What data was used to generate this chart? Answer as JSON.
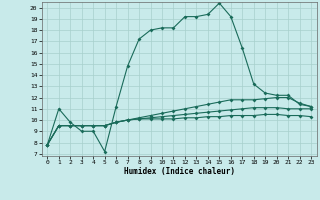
{
  "xlabel": "Humidex (Indice chaleur)",
  "bg_color": "#c8eaea",
  "grid_color": "#a8d0cc",
  "line_color": "#1a6b5a",
  "xlim": [
    -0.5,
    23.5
  ],
  "ylim": [
    6.8,
    20.5
  ],
  "xticks": [
    0,
    1,
    2,
    3,
    4,
    5,
    6,
    7,
    8,
    9,
    10,
    11,
    12,
    13,
    14,
    15,
    16,
    17,
    18,
    19,
    20,
    21,
    22,
    23
  ],
  "yticks": [
    7,
    8,
    9,
    10,
    11,
    12,
    13,
    14,
    15,
    16,
    17,
    18,
    19,
    20
  ],
  "series1_x": [
    0,
    1,
    2,
    3,
    4,
    5,
    6,
    7,
    8,
    9,
    10,
    11,
    12,
    13,
    14,
    15,
    16,
    17,
    18,
    19,
    20,
    21,
    22,
    23
  ],
  "series1_y": [
    7.8,
    11.0,
    9.8,
    9.0,
    9.0,
    7.2,
    11.2,
    14.8,
    17.2,
    18.0,
    18.2,
    18.2,
    19.2,
    19.2,
    19.4,
    20.4,
    19.2,
    16.4,
    13.2,
    12.4,
    12.2,
    12.2,
    11.4,
    11.2
  ],
  "series2_x": [
    0,
    1,
    2,
    3,
    4,
    5,
    6,
    7,
    8,
    9,
    10,
    11,
    12,
    13,
    14,
    15,
    16,
    17,
    18,
    19,
    20,
    21,
    22,
    23
  ],
  "series2_y": [
    7.8,
    9.5,
    9.5,
    9.5,
    9.5,
    9.5,
    9.8,
    10.0,
    10.2,
    10.4,
    10.6,
    10.8,
    11.0,
    11.2,
    11.4,
    11.6,
    11.8,
    11.8,
    11.8,
    11.9,
    12.0,
    12.0,
    11.5,
    11.2
  ],
  "series3_x": [
    0,
    1,
    2,
    3,
    4,
    5,
    6,
    7,
    8,
    9,
    10,
    11,
    12,
    13,
    14,
    15,
    16,
    17,
    18,
    19,
    20,
    21,
    22,
    23
  ],
  "series3_y": [
    7.8,
    9.5,
    9.5,
    9.5,
    9.5,
    9.5,
    9.8,
    10.0,
    10.1,
    10.2,
    10.3,
    10.4,
    10.5,
    10.6,
    10.7,
    10.8,
    10.9,
    11.0,
    11.1,
    11.1,
    11.1,
    11.0,
    11.0,
    11.0
  ],
  "series4_x": [
    0,
    1,
    2,
    3,
    4,
    5,
    6,
    7,
    8,
    9,
    10,
    11,
    12,
    13,
    14,
    15,
    16,
    17,
    18,
    19,
    20,
    21,
    22,
    23
  ],
  "series4_y": [
    7.8,
    9.5,
    9.5,
    9.5,
    9.5,
    9.5,
    9.8,
    10.0,
    10.1,
    10.1,
    10.1,
    10.1,
    10.2,
    10.2,
    10.3,
    10.3,
    10.4,
    10.4,
    10.4,
    10.5,
    10.5,
    10.4,
    10.4,
    10.3
  ]
}
